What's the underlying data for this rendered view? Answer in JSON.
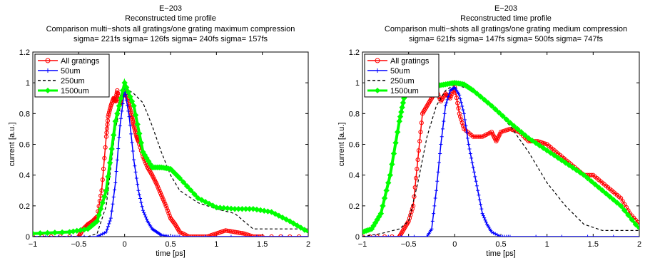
{
  "figure": {
    "panels": [
      {
        "title_lines": [
          "E−203",
          "Reconstructed time profile",
          "Comparison multi−shots all gratings/one grating maximum compression",
          "sigma= 221fs sigma= 126fs sigma= 240fs sigma= 157fs"
        ],
        "xlabel": "time [ps]",
        "ylabel": "current [a.u.]",
        "xticks": [
          "−1",
          "−0.5",
          "0",
          "0.5",
          "1",
          "1.5",
          "2"
        ],
        "yticks": [
          "0",
          "0.2",
          "0.4",
          "0.6",
          "0.8",
          "1",
          "1.2"
        ],
        "legend": [
          "All gratings",
          "50um",
          "250um",
          "1500um"
        ]
      },
      {
        "title_lines": [
          "E−203",
          "Reconstructed time profile",
          "Comparison multi−shots all gratings/one grating medium compression",
          "sigma= 621fs sigma= 147fs sigma= 500fs sigma= 747fs"
        ],
        "xlabel": "time [ps]",
        "ylabel": "current [a.u.]",
        "xticks": [
          "−1",
          "−0.5",
          "0",
          "0.5",
          "1",
          "1.5",
          "2"
        ],
        "yticks": [
          "0",
          "0.2",
          "0.4",
          "0.6",
          "0.8",
          "1",
          "1.2"
        ],
        "legend": [
          "All gratings",
          "50um",
          "250um",
          "1500um"
        ]
      }
    ]
  },
  "chart_data": [
    {
      "type": "line",
      "title": "E−203 Reconstructed time profile Comparison multi−shots all gratings/one grating maximum compression",
      "subtitle": "sigma= 221fs sigma= 126fs sigma= 240fs sigma= 157fs",
      "xlabel": "time [ps]",
      "ylabel": "current [a.u.]",
      "xlim": [
        -1,
        2
      ],
      "ylim": [
        0,
        1.2
      ],
      "grid": false,
      "legend_position": "top-left",
      "series": [
        {
          "name": "All gratings",
          "color": "#ff0000",
          "marker": "circle",
          "line": "solid",
          "x": [
            -1,
            -0.5,
            -0.45,
            -0.4,
            -0.35,
            -0.3,
            -0.25,
            -0.2,
            -0.18,
            -0.15,
            -0.12,
            -0.1,
            -0.08,
            -0.05,
            -0.03,
            0,
            0.03,
            0.05,
            0.08,
            0.1,
            0.13,
            0.15,
            0.2,
            0.25,
            0.3,
            0.35,
            0.4,
            0.45,
            0.5,
            0.55,
            0.6,
            0.7,
            0.8,
            0.9,
            1.0,
            1.1,
            1.2,
            1.3,
            1.4,
            1.5,
            2
          ],
          "y": [
            0,
            0,
            0.05,
            0.08,
            0.1,
            0.13,
            0.3,
            0.65,
            0.78,
            0.85,
            0.9,
            0.88,
            0.95,
            0.86,
            0.9,
            0.95,
            0.9,
            0.85,
            0.78,
            0.72,
            0.65,
            0.62,
            0.52,
            0.45,
            0.4,
            0.34,
            0.27,
            0.2,
            0.12,
            0.08,
            0.03,
            0,
            0,
            0,
            0.02,
            0.04,
            0.03,
            0.02,
            0,
            0,
            0
          ]
        },
        {
          "name": "50um",
          "color": "#0000ff",
          "marker": "plus",
          "line": "solid",
          "x": [
            -1,
            -0.3,
            -0.2,
            -0.15,
            -0.1,
            -0.05,
            0,
            0.05,
            0.1,
            0.15,
            0.2,
            0.25,
            0.3,
            0.35,
            0.4,
            0.5,
            0.6,
            2
          ],
          "y": [
            0,
            0,
            0.03,
            0.12,
            0.35,
            0.72,
            0.96,
            0.78,
            0.5,
            0.3,
            0.17,
            0.1,
            0.05,
            0.03,
            0.01,
            0,
            0,
            0
          ]
        },
        {
          "name": "250um",
          "color": "#000000",
          "marker": "none",
          "line": "dashed",
          "x": [
            -1,
            -0.4,
            -0.3,
            -0.2,
            -0.1,
            0,
            0.1,
            0.2,
            0.3,
            0.4,
            0.5,
            0.6,
            0.8,
            1.0,
            1.2,
            1.3,
            1.4,
            2
          ],
          "y": [
            0,
            0,
            0.02,
            0.2,
            0.7,
            0.97,
            0.93,
            0.87,
            0.72,
            0.55,
            0.4,
            0.3,
            0.22,
            0.18,
            0.15,
            0.1,
            0.05,
            0.05
          ]
        },
        {
          "name": "1500um",
          "color": "#00ff00",
          "marker": "diamond",
          "line": "solid",
          "x": [
            -1,
            -0.6,
            -0.4,
            -0.3,
            -0.2,
            -0.1,
            0,
            0.1,
            0.2,
            0.3,
            0.4,
            0.5,
            0.6,
            0.8,
            1.0,
            1.2,
            1.4,
            1.6,
            1.8,
            2
          ],
          "y": [
            0.02,
            0.03,
            0.05,
            0.1,
            0.3,
            0.75,
            1.0,
            0.85,
            0.55,
            0.45,
            0.45,
            0.44,
            0.38,
            0.25,
            0.19,
            0.18,
            0.18,
            0.16,
            0.1,
            0.03
          ]
        }
      ]
    },
    {
      "type": "line",
      "title": "E−203 Reconstructed time profile Comparison multi−shots all gratings/one grating medium compression",
      "subtitle": "sigma= 621fs sigma= 147fs sigma= 500fs sigma= 747fs",
      "xlabel": "time [ps]",
      "ylabel": "current [a.u.]",
      "xlim": [
        -1,
        2
      ],
      "ylim": [
        0,
        1.2
      ],
      "grid": false,
      "legend_position": "top-left",
      "series": [
        {
          "name": "All gratings",
          "color": "#ff0000",
          "marker": "circle",
          "line": "solid",
          "x": [
            -1,
            -0.6,
            -0.55,
            -0.5,
            -0.45,
            -0.4,
            -0.35,
            -0.3,
            -0.25,
            -0.2,
            -0.15,
            -0.1,
            -0.05,
            0,
            0.05,
            0.1,
            0.2,
            0.3,
            0.4,
            0.45,
            0.5,
            0.6,
            0.7,
            0.8,
            0.9,
            1.0,
            1.1,
            1.2,
            1.3,
            1.4,
            1.5,
            1.6,
            1.7,
            1.8,
            1.9,
            2
          ],
          "y": [
            0,
            0,
            0.05,
            0.1,
            0.2,
            0.5,
            0.8,
            0.85,
            0.9,
            0.95,
            0.88,
            0.93,
            0.9,
            0.97,
            0.8,
            0.7,
            0.65,
            0.65,
            0.68,
            0.62,
            0.68,
            0.7,
            0.68,
            0.62,
            0.62,
            0.6,
            0.55,
            0.5,
            0.45,
            0.4,
            0.4,
            0.35,
            0.3,
            0.25,
            0.15,
            0.08
          ]
        },
        {
          "name": "50um",
          "color": "#0000ff",
          "marker": "plus",
          "line": "solid",
          "x": [
            -1,
            -0.3,
            -0.25,
            -0.2,
            -0.15,
            -0.1,
            -0.05,
            0,
            0.05,
            0.1,
            0.15,
            0.2,
            0.25,
            0.3,
            0.35,
            0.4,
            0.5,
            0.6,
            2
          ],
          "y": [
            0,
            0,
            0.05,
            0.3,
            0.6,
            0.85,
            0.95,
            0.97,
            0.92,
            0.8,
            0.6,
            0.45,
            0.3,
            0.15,
            0.08,
            0.03,
            0,
            0,
            0
          ]
        },
        {
          "name": "250um",
          "color": "#000000",
          "marker": "none",
          "line": "dashed",
          "x": [
            -1,
            -0.8,
            -0.6,
            -0.5,
            -0.4,
            -0.3,
            -0.2,
            -0.1,
            0,
            0.1,
            0.2,
            0.4,
            0.6,
            0.8,
            1.0,
            1.2,
            1.4,
            1.6,
            1.8,
            2
          ],
          "y": [
            0,
            0.02,
            0.05,
            0.1,
            0.35,
            0.65,
            0.85,
            0.95,
            0.99,
            0.97,
            0.95,
            0.85,
            0.72,
            0.55,
            0.35,
            0.2,
            0.08,
            0.04,
            0.04,
            0.04
          ]
        },
        {
          "name": "1500um",
          "color": "#00ff00",
          "marker": "diamond",
          "line": "solid",
          "x": [
            -1,
            -0.9,
            -0.8,
            -0.7,
            -0.6,
            -0.55,
            -0.5,
            -0.4,
            -0.3,
            -0.2,
            -0.1,
            0,
            0.1,
            0.2,
            0.4,
            0.6,
            0.8,
            1.0,
            1.2,
            1.4,
            1.6,
            1.8,
            2
          ],
          "y": [
            0.03,
            0.05,
            0.15,
            0.4,
            0.75,
            0.9,
            0.95,
            0.97,
            0.97,
            0.98,
            0.99,
            1.0,
            0.99,
            0.95,
            0.85,
            0.74,
            0.64,
            0.56,
            0.48,
            0.4,
            0.3,
            0.2,
            0.05
          ]
        }
      ]
    }
  ]
}
